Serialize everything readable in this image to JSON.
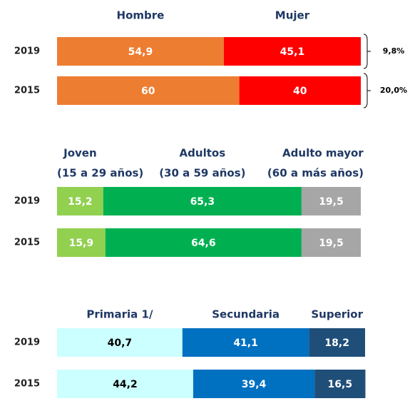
{
  "chart_data": [
    {
      "type": "bar",
      "stacked": true,
      "orientation": "horizontal",
      "xlim": [
        0,
        100
      ],
      "categories": [
        "2019",
        "2015"
      ],
      "series": [
        {
          "name": "Hombre",
          "color": "#ed7d31",
          "label_color": "#ffffff",
          "values": [
            54.9,
            60
          ],
          "value_labels": [
            "54,9",
            "60"
          ]
        },
        {
          "name": "Mujer",
          "color": "#ff0000",
          "label_color": "#ffffff",
          "values": [
            45.1,
            40
          ],
          "value_labels": [
            "45,1",
            "40"
          ]
        }
      ],
      "annotations": [
        "9,8%",
        "20,0%"
      ]
    },
    {
      "type": "bar",
      "stacked": true,
      "orientation": "horizontal",
      "xlim": [
        0,
        100
      ],
      "categories": [
        "2019",
        "2015"
      ],
      "series": [
        {
          "name": "Joven",
          "subtitle": "(15 a 29 años)",
          "color": "#92d050",
          "label_color": "#ffffff",
          "values": [
            15.2,
            15.9
          ],
          "value_labels": [
            "15,2",
            "15,9"
          ]
        },
        {
          "name": "Adultos",
          "subtitle": "(30 a 59 años)",
          "color": "#00b050",
          "label_color": "#ffffff",
          "values": [
            65.3,
            64.6
          ],
          "value_labels": [
            "65,3",
            "64,6"
          ]
        },
        {
          "name": "Adulto mayor",
          "subtitle": "(60 a más años)",
          "color": "#a6a6a6",
          "label_color": "#ffffff",
          "values": [
            19.5,
            19.5
          ],
          "value_labels": [
            "19,5",
            "19,5"
          ]
        }
      ]
    },
    {
      "type": "bar",
      "stacked": true,
      "orientation": "horizontal",
      "xlim": [
        0,
        100
      ],
      "categories": [
        "2019",
        "2015"
      ],
      "series": [
        {
          "name": "Primaria 1/",
          "color": "#ccffff",
          "label_color": "#000000",
          "values": [
            40.7,
            44.2
          ],
          "value_labels": [
            "40,7",
            "44,2"
          ]
        },
        {
          "name": "Secundaria",
          "color": "#0070c0",
          "label_color": "#ffffff",
          "values": [
            41.1,
            39.4
          ],
          "value_labels": [
            "41,1",
            "39,4"
          ]
        },
        {
          "name": "Superior",
          "color": "#1f4e79",
          "label_color": "#ffffff",
          "values": [
            18.2,
            16.5
          ],
          "value_labels": [
            "18,2",
            "16,5"
          ]
        }
      ]
    }
  ]
}
